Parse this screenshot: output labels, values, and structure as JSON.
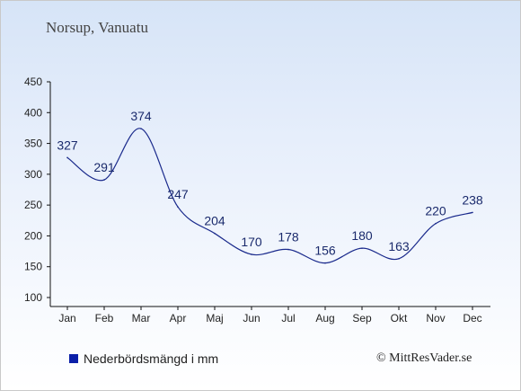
{
  "header": {
    "location": "Norsup, Vanuatu"
  },
  "legend": {
    "label": "Nederbördsmängd i mm",
    "color": "#0b1fa8"
  },
  "footer": {
    "copyright": "© MittResVader.se"
  },
  "colors": {
    "line": "#1a2a8c",
    "labels": "#1a2a6c"
  },
  "chart_data": {
    "type": "line",
    "categories": [
      "Jan",
      "Feb",
      "Mar",
      "Apr",
      "Maj",
      "Jun",
      "Jul",
      "Aug",
      "Sep",
      "Okt",
      "Nov",
      "Dec"
    ],
    "series": [
      {
        "name": "Nederbördsmängd i mm",
        "values": [
          327,
          291,
          374,
          247,
          204,
          170,
          178,
          156,
          180,
          163,
          220,
          238
        ]
      }
    ],
    "ylim": [
      100,
      450
    ],
    "yticks": [
      100,
      150,
      200,
      250,
      300,
      350,
      400,
      450
    ],
    "grid": false,
    "legend_position": "bottom-left"
  }
}
